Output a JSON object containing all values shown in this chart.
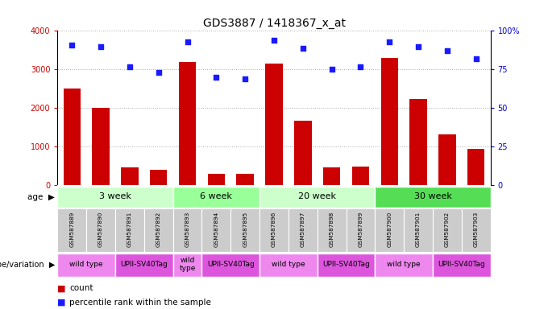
{
  "title": "GDS3887 / 1418367_x_at",
  "samples": [
    "GSM587889",
    "GSM587890",
    "GSM587891",
    "GSM587892",
    "GSM587893",
    "GSM587894",
    "GSM587895",
    "GSM587896",
    "GSM587897",
    "GSM587898",
    "GSM587899",
    "GSM587900",
    "GSM587901",
    "GSM587902",
    "GSM587903"
  ],
  "counts": [
    2500,
    2000,
    470,
    400,
    3200,
    300,
    290,
    3150,
    1670,
    470,
    490,
    3300,
    2230,
    1330,
    950
  ],
  "percentiles": [
    91,
    90,
    77,
    73,
    93,
    70,
    69,
    94,
    89,
    75,
    77,
    93,
    90,
    87,
    82
  ],
  "bar_color": "#cc0000",
  "dot_color": "#1a1aff",
  "age_groups": [
    {
      "label": "3 week",
      "start": 0,
      "end": 4,
      "color": "#ccffcc"
    },
    {
      "label": "6 week",
      "start": 4,
      "end": 7,
      "color": "#99ff99"
    },
    {
      "label": "20 week",
      "start": 7,
      "end": 11,
      "color": "#ccffcc"
    },
    {
      "label": "30 week",
      "start": 11,
      "end": 15,
      "color": "#55dd55"
    }
  ],
  "genotype_groups": [
    {
      "label": "wild type",
      "start": 0,
      "end": 2,
      "color": "#ee88ee"
    },
    {
      "label": "UPII-SV40Tag",
      "start": 2,
      "end": 4,
      "color": "#dd55dd"
    },
    {
      "label": "wild\ntype",
      "start": 4,
      "end": 5,
      "color": "#ee88ee"
    },
    {
      "label": "UPII-SV40Tag",
      "start": 5,
      "end": 7,
      "color": "#dd55dd"
    },
    {
      "label": "wild type",
      "start": 7,
      "end": 9,
      "color": "#ee88ee"
    },
    {
      "label": "UPII-SV40Tag",
      "start": 9,
      "end": 11,
      "color": "#dd55dd"
    },
    {
      "label": "wild type",
      "start": 11,
      "end": 13,
      "color": "#ee88ee"
    },
    {
      "label": "UPII-SV40Tag",
      "start": 13,
      "end": 15,
      "color": "#dd55dd"
    }
  ],
  "ylim_left": [
    0,
    4000
  ],
  "ylim_right": [
    0,
    100
  ],
  "yticks_left": [
    0,
    1000,
    2000,
    3000,
    4000
  ],
  "yticks_right": [
    0,
    25,
    50,
    75,
    100
  ],
  "ylabel_left_color": "#cc0000",
  "ylabel_right_color": "#0000cc",
  "grid_color": "#888888",
  "background_color": "#ffffff",
  "header_bg": "#cccccc"
}
